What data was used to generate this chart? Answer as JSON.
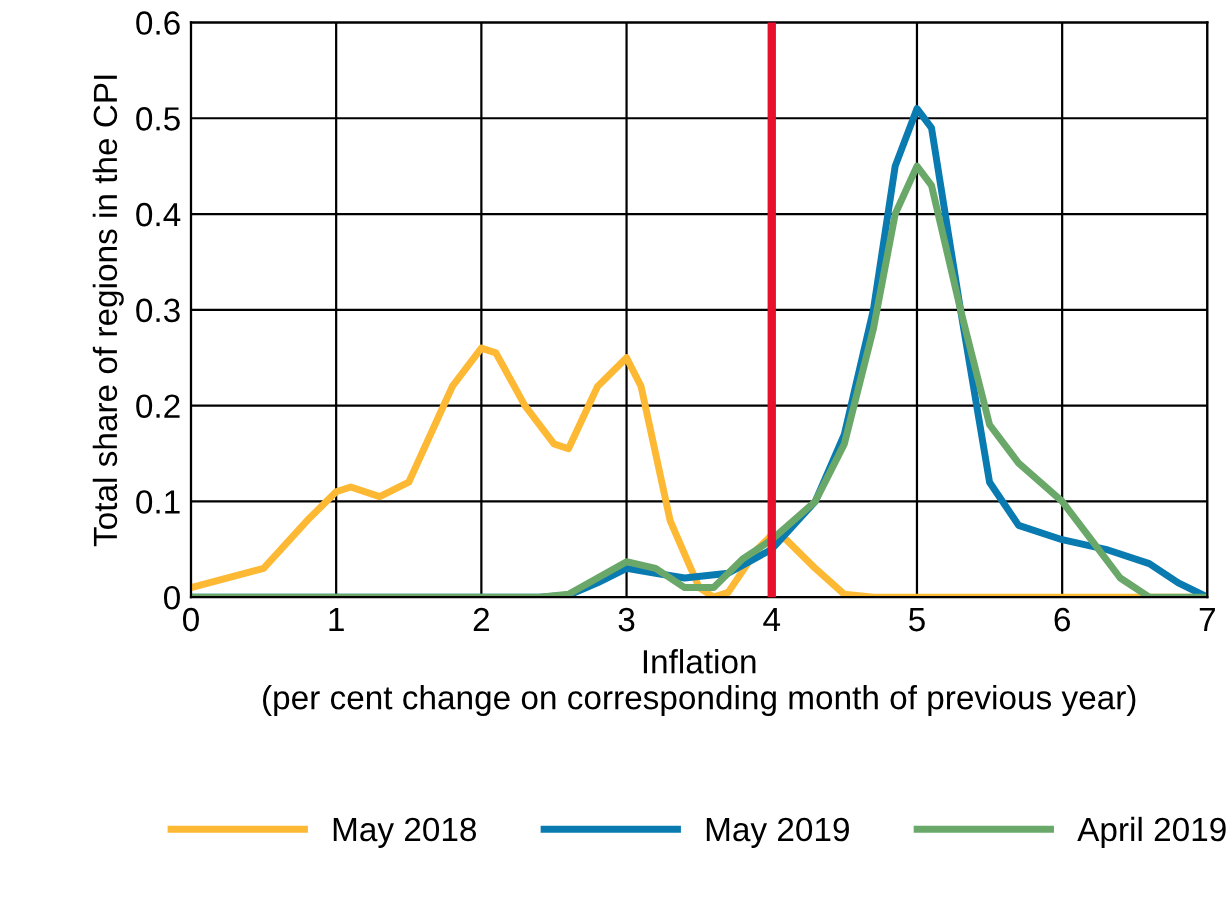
{
  "chart_data": {
    "type": "line",
    "xlabel": "Inflation\n(per cent change on corresponding month of previous year)",
    "ylabel": "Total share of regions in the CPI",
    "xlim": [
      0,
      7
    ],
    "xticks": [
      0,
      1,
      2,
      3,
      4,
      5,
      6,
      7
    ],
    "ylim": [
      0,
      0.6
    ],
    "yticks": [
      0,
      0.1,
      0.2,
      0.3,
      0.4,
      0.5,
      0.6
    ],
    "grid": true,
    "legend": "bottom",
    "line_style": "solid",
    "marker": "none",
    "ref_lines": [
      {
        "axis": "x",
        "value": 4,
        "color": "#e8112d"
      }
    ],
    "series": [
      {
        "name": "May 2018",
        "color": "#fdb933",
        "x": [
          0,
          0.5,
          0.8,
          1.0,
          1.1,
          1.3,
          1.5,
          1.8,
          2.0,
          2.1,
          2.3,
          2.5,
          2.6,
          2.8,
          3.0,
          3.1,
          3.3,
          3.5,
          3.6,
          3.7,
          3.9,
          4.0,
          4.1,
          4.3,
          4.5,
          4.7,
          5,
          7
        ],
        "values": [
          0.01,
          0.03,
          0.08,
          0.11,
          0.115,
          0.105,
          0.12,
          0.22,
          0.26,
          0.255,
          0.2,
          0.16,
          0.155,
          0.22,
          0.25,
          0.22,
          0.08,
          0.01,
          0,
          0.005,
          0.05,
          0.065,
          0.06,
          0.03,
          0.003,
          0,
          0,
          0
        ]
      },
      {
        "name": "May 2019",
        "color": "#0a7bb0",
        "x": [
          0,
          2.4,
          2.6,
          2.8,
          3.0,
          3.2,
          3.4,
          3.7,
          4.0,
          4.3,
          4.5,
          4.7,
          4.85,
          5.0,
          5.1,
          5.3,
          5.5,
          5.7,
          6.0,
          6.3,
          6.6,
          6.8,
          7.0
        ],
        "values": [
          0,
          0,
          0.002,
          0.015,
          0.03,
          0.025,
          0.02,
          0.025,
          0.05,
          0.1,
          0.17,
          0.3,
          0.45,
          0.51,
          0.49,
          0.3,
          0.12,
          0.075,
          0.06,
          0.05,
          0.035,
          0.015,
          0
        ]
      },
      {
        "name": "April 2019",
        "color": "#6aa86a",
        "x": [
          0,
          2.4,
          2.6,
          2.8,
          3.0,
          3.2,
          3.4,
          3.6,
          3.8,
          4.0,
          4.3,
          4.5,
          4.7,
          4.85,
          5.0,
          5.1,
          5.3,
          5.5,
          5.7,
          6.0,
          6.2,
          6.4,
          6.6,
          7
        ],
        "values": [
          0,
          0,
          0.003,
          0.02,
          0.037,
          0.03,
          0.01,
          0.01,
          0.04,
          0.06,
          0.1,
          0.16,
          0.28,
          0.4,
          0.45,
          0.43,
          0.3,
          0.18,
          0.14,
          0.1,
          0.06,
          0.02,
          0,
          0
        ]
      }
    ]
  }
}
